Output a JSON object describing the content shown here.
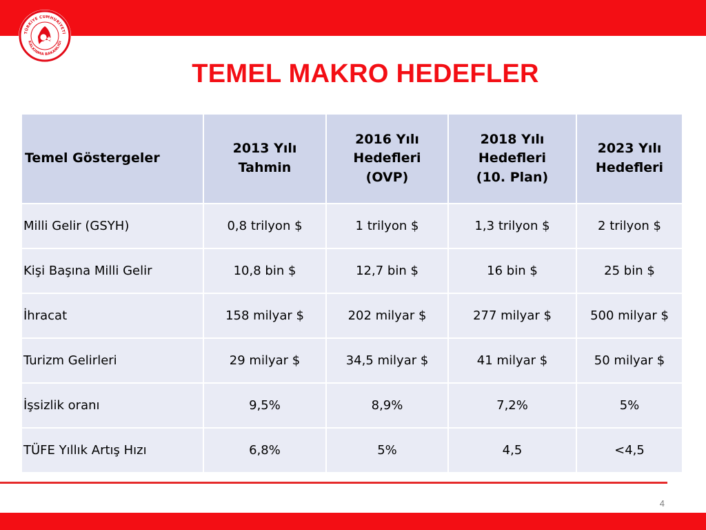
{
  "logo": {
    "ring_text_top": "TÜRKİYE CUMHURİYETİ",
    "ring_text_bottom": "KALKINMA BAKANLIĞI",
    "colors": {
      "ring": "#e30a17",
      "accent": "#e30a17",
      "background": "#ffffff"
    }
  },
  "slide": {
    "title": "TEMEL MAKRO HEDEFLER",
    "page_number": "4"
  },
  "table": {
    "columns": [
      "Temel Göstergeler",
      "2013 Yılı\nTahmin",
      "2016 Yılı\nHedefleri\n(OVP)",
      "2018 Yılı\nHedefleri\n(10. Plan)",
      "2023 Yılı\nHedefleri"
    ],
    "rows": [
      [
        "Milli Gelir (GSYH)",
        "0,8 trilyon $",
        "1 trilyon $",
        "1,3 trilyon $",
        "2 trilyon $"
      ],
      [
        "Kişi Başına Milli Gelir",
        "10,8 bin $",
        "12,7 bin $",
        "16 bin $",
        "25 bin $"
      ],
      [
        "İhracat",
        "158 milyar $",
        "202 milyar $",
        "277 milyar $",
        "500 milyar $"
      ],
      [
        "Turizm Gelirleri",
        "29 milyar $",
        "34,5 milyar $",
        "41 milyar $",
        "50 milyar $"
      ],
      [
        "İşsizlik oranı",
        "9,5%",
        "8,9%",
        "7,2%",
        "5%"
      ],
      [
        "TÜFE Yıllık Artış Hızı",
        "6,8%",
        "5%",
        "4,5",
        "<4,5"
      ]
    ]
  },
  "colors": {
    "band_red": "#f30e14",
    "title_red": "#f30e14",
    "header_cell": "#cfd5ea",
    "body_cell": "#e9ebf5"
  }
}
